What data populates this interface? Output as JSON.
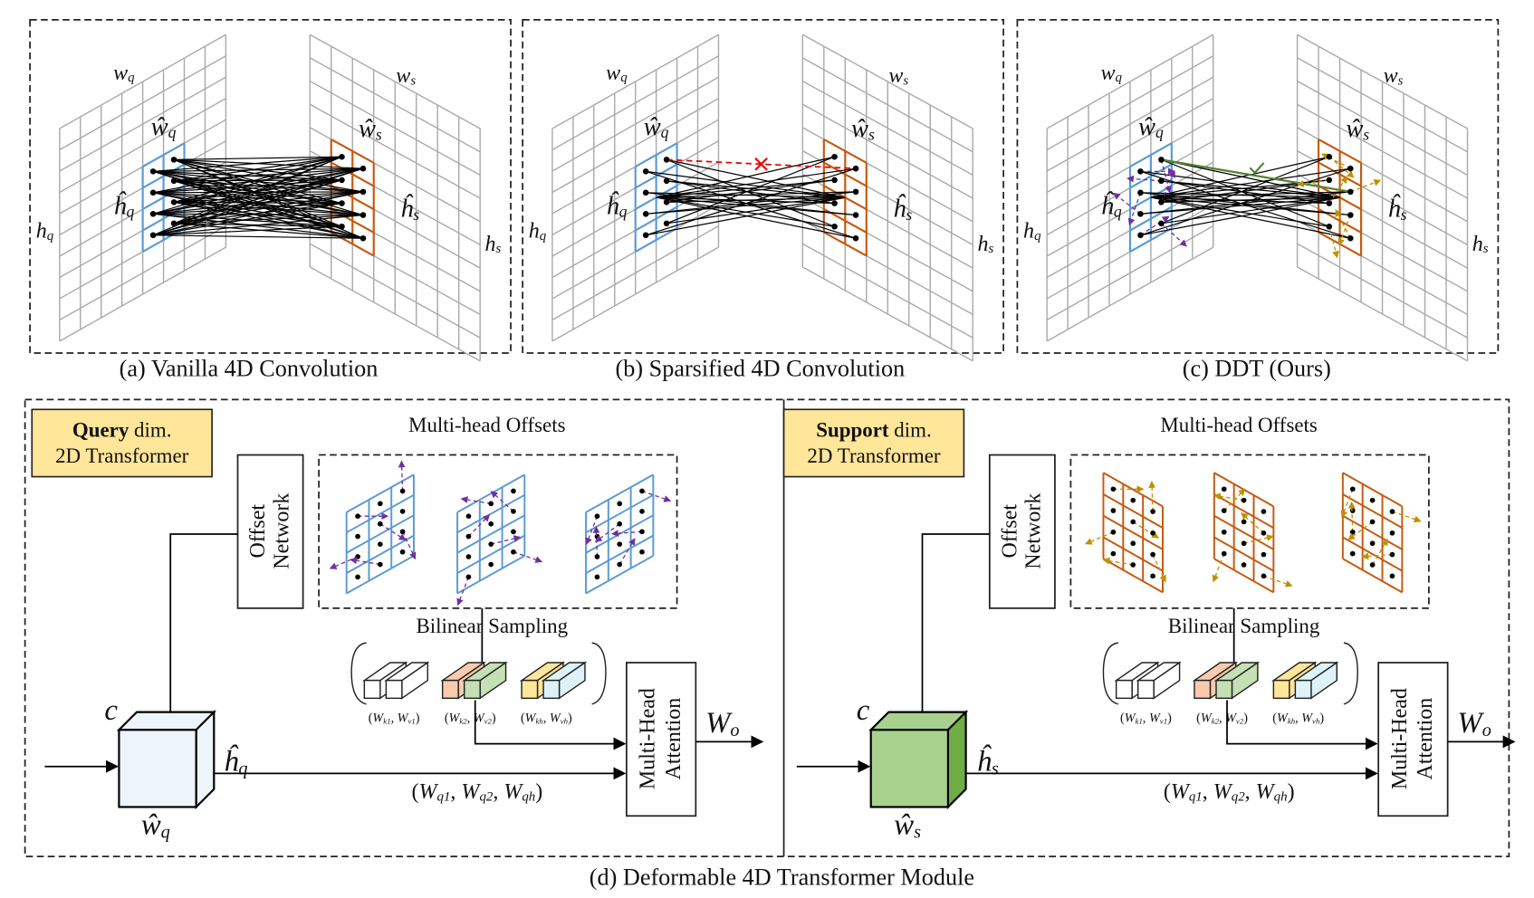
{
  "top_panels": [
    {
      "caption": "(a) Vanilla 4D Convolution"
    },
    {
      "caption": "(b) Sparsified 4D Convolution"
    },
    {
      "caption": "(c) DDT (Ours)"
    }
  ],
  "symbols": {
    "w_q": [
      "w",
      "q"
    ],
    "w_hat_q": [
      "ŵ",
      "q"
    ],
    "h_q": [
      "h",
      "q"
    ],
    "h_hat_q": [
      "ĥ",
      "q"
    ],
    "w_s": [
      "w",
      "s"
    ],
    "w_hat_s": [
      "ŵ",
      "s"
    ],
    "h_s": [
      "h",
      "s"
    ],
    "h_hat_s": [
      "ĥ",
      "s"
    ]
  },
  "module": {
    "caption": "(d) Deformable 4D Transformer Module",
    "halves": [
      {
        "badge_bold": "Query",
        "badge_rest": " dim.",
        "badge_line2": "2D Transformer",
        "offsets_title": "Multi-head Offsets",
        "offset_network": [
          "Offset",
          "Network"
        ],
        "sampling": "Bilinear Sampling",
        "attention": [
          "Multi-Head",
          "Attention"
        ],
        "output": [
          "W",
          "o"
        ],
        "channel": "c",
        "height": [
          "ĥ",
          "q"
        ],
        "width": [
          "ŵ",
          "q"
        ],
        "kv_labels": [
          [
            "(",
            [
              "W",
              "k1"
            ],
            ", ",
            [
              "W",
              "v1"
            ],
            ")"
          ],
          [
            "(",
            [
              "W",
              "k2"
            ],
            ", ",
            [
              "W",
              "v2"
            ],
            ")"
          ],
          [
            "(",
            [
              "W",
              "kh"
            ],
            ", ",
            [
              "W",
              "vh"
            ],
            ")"
          ]
        ],
        "q_label": [
          "(",
          [
            "W",
            "q1"
          ],
          ", ",
          [
            "W",
            "q2"
          ],
          ", ",
          [
            "W",
            "qh"
          ],
          ")"
        ]
      },
      {
        "badge_bold": "Support",
        "badge_rest": " dim.",
        "badge_line2": "2D Transformer",
        "offsets_title": "Multi-head Offsets",
        "offset_network": [
          "Offset",
          "Network"
        ],
        "sampling": "Bilinear Sampling",
        "attention": [
          "Multi-Head",
          "Attention"
        ],
        "output": [
          "W",
          "o"
        ],
        "channel": "c",
        "height": [
          "ĥ",
          "s"
        ],
        "width": [
          "ŵ",
          "s"
        ],
        "kv_labels": [
          [
            "(",
            [
              "W",
              "k1"
            ],
            ", ",
            [
              "W",
              "v1"
            ],
            ")"
          ],
          [
            "(",
            [
              "W",
              "k2"
            ],
            ", ",
            [
              "W",
              "v2"
            ],
            ")"
          ],
          [
            "(",
            [
              "W",
              "kh"
            ],
            ", ",
            [
              "W",
              "vh"
            ],
            ")"
          ]
        ],
        "q_label": [
          "(",
          [
            "W",
            "q1"
          ],
          ", ",
          [
            "W",
            "q2"
          ],
          ", ",
          [
            "W",
            "qh"
          ],
          ")"
        ]
      }
    ]
  }
}
